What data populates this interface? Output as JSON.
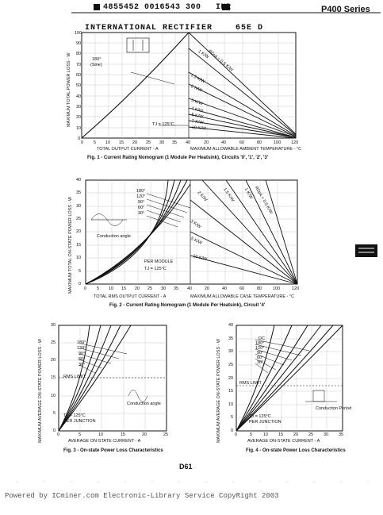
{
  "header": {
    "code": "4855452 0016543 300",
    "code_suffix": "INR",
    "series": "P400 Series",
    "company": "INTERNATIONAL RECTIFIER",
    "company_code": "65E D"
  },
  "fig1": {
    "caption": "Fig. 1 - Current Rating Nomogram (1 Module  Per Heatsink), Circuits '0', '1', '2', '3'",
    "xlabel_left": "TOTAL OUTPUT CURRENT  -  A",
    "xlabel_right": "MAXIMUM ALLOWABLE AMBIENT TEMPERATURE  -  °C",
    "ylabel": "MAXIMUM TOTAL POWER LOSS  -  W",
    "yticks": [
      "0",
      "10",
      "20",
      "30",
      "40",
      "50",
      "60",
      "70",
      "80",
      "90",
      "100"
    ],
    "xticks_left": [
      "0",
      "5",
      "10",
      "15",
      "20",
      "25",
      "30",
      "35",
      "40"
    ],
    "xticks_right": [
      "20",
      "40",
      "60",
      "80",
      "100",
      "120"
    ],
    "annotation_angle": "180°",
    "annotation_wave": "(Sine)",
    "annotation_tj": "TJ  =  125°C",
    "lines": [
      "R0sA = 0.5 K/W",
      "1 K/W",
      "1.5 K/W",
      "2 K/W",
      "3 K/W",
      "4 K/W",
      "5 K/W",
      "7 K/W",
      "10 K/W"
    ]
  },
  "fig2": {
    "caption": "Fig. 2 - Current Rating Nomogram (1 Module  Per Heatsink), Circuit '4'",
    "xlabel_left": "TOTAL RMS OUTPUT CURRENT  -  A",
    "xlabel_right": "MAXIMUM ALLOWABLE CASE TEMPERATURE  -  °C",
    "ylabel": "MAXIMUM TOTAL ON-STATE POWER LOSS  -  W",
    "yticks": [
      "0",
      "5",
      "10",
      "15",
      "20",
      "25",
      "30",
      "35",
      "40"
    ],
    "xticks_left": [
      "0",
      "5",
      "10",
      "15",
      "20",
      "25",
      "30",
      "35",
      "40"
    ],
    "xticks_right": [
      "20",
      "40",
      "60",
      "80",
      "100",
      "120"
    ],
    "angles": [
      "180°",
      "120°",
      "90°",
      "60°",
      "30°"
    ],
    "annotation_conduction": "Conduction angle",
    "annotation_module": "PER MODULE",
    "annotation_tj": "TJ  =  125°C",
    "lines": [
      "R0sA = 0.5 K/W",
      "1 K/W",
      "1.5 K/W",
      "2 K/W",
      "3 K/W",
      "5 K/W",
      "10 K/W"
    ]
  },
  "fig3": {
    "caption": "Fig. 3 - On-state Power Loss Characteristics",
    "xlabel": "AVERAGE ON-STATE CURRENT  -  A",
    "ylabel": "MAXIMUM AVERAGE ON-STATE POWER LOSS  -  W",
    "yticks": [
      "0",
      "5",
      "10",
      "15",
      "20",
      "25",
      "30"
    ],
    "xticks": [
      "0",
      "5",
      "10",
      "15",
      "20",
      "25"
    ],
    "angles": [
      "180°",
      "120°",
      "90°",
      "60°",
      "30°"
    ],
    "annotation_rms": "RMS LIMIT",
    "annotation_conduction": "Conduction angle",
    "annotation_tj": "TJ  =  125°C",
    "annotation_junction": "PER JUNCTION"
  },
  "fig4": {
    "caption": "Fig. 4 - On-state Power Loss Characteristics",
    "xlabel": "AVERAGE ON-STATE CURRENT  -  A",
    "ylabel": "MAXIMUM AVERAGE ON-STATE POWER LOSS  -  W",
    "yticks": [
      "0",
      "5",
      "10",
      "15",
      "20",
      "25",
      "30",
      "35",
      "40"
    ],
    "xticks": [
      "0",
      "5",
      "10",
      "15",
      "20",
      "25",
      "30",
      "35"
    ],
    "angles": [
      "DC",
      "180°",
      "120°",
      "90°",
      "60°",
      "30°"
    ],
    "annotation_rms": "RMS LIMIT",
    "annotation_conduction": "Conduction Period",
    "annotation_tj": "TJ  =  125°C",
    "annotation_junction": "PER JUNCTION"
  },
  "page_number": "D61",
  "footer": "Powered by ICminer.com Electronic-Library Service CopyRight 2003"
}
